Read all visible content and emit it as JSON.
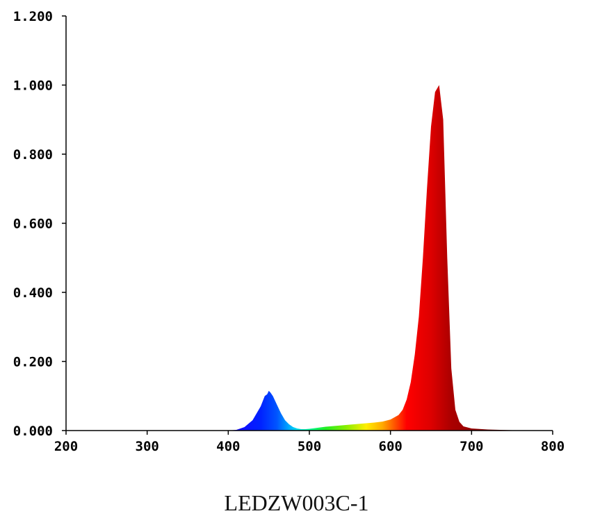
{
  "caption": "LEDZW003C-1",
  "chart_data": {
    "type": "area",
    "title": "",
    "xlabel": "",
    "ylabel": "",
    "xlim": [
      200,
      800
    ],
    "ylim": [
      0,
      1.2
    ],
    "x_ticks": [
      "200",
      "300",
      "400",
      "500",
      "600",
      "700",
      "800"
    ],
    "y_ticks": [
      "0.000",
      "0.200",
      "0.400",
      "0.600",
      "0.800",
      "1.000",
      "1.200"
    ],
    "grid": false,
    "fill": "visible-spectrum gradient",
    "series": [
      {
        "x": [
          200,
          400,
          410,
          420,
          430,
          440,
          445,
          448,
          450,
          452,
          455,
          460,
          465,
          470,
          475,
          480,
          485,
          490,
          495,
          500,
          510,
          520,
          530,
          540,
          550,
          560,
          570,
          580,
          590,
          600,
          610,
          615,
          620,
          625,
          630,
          635,
          640,
          645,
          650,
          655,
          660,
          665,
          670,
          675,
          680,
          685,
          690,
          700,
          720,
          750,
          800
        ],
        "values": [
          0,
          0,
          0.002,
          0.01,
          0.03,
          0.07,
          0.1,
          0.105,
          0.115,
          0.11,
          0.1,
          0.075,
          0.05,
          0.03,
          0.018,
          0.01,
          0.006,
          0.004,
          0.004,
          0.005,
          0.008,
          0.011,
          0.013,
          0.015,
          0.017,
          0.019,
          0.021,
          0.023,
          0.026,
          0.032,
          0.045,
          0.06,
          0.09,
          0.14,
          0.22,
          0.33,
          0.5,
          0.7,
          0.88,
          0.98,
          1.0,
          0.9,
          0.5,
          0.18,
          0.06,
          0.025,
          0.012,
          0.006,
          0.003,
          0.001,
          0
        ]
      }
    ]
  }
}
